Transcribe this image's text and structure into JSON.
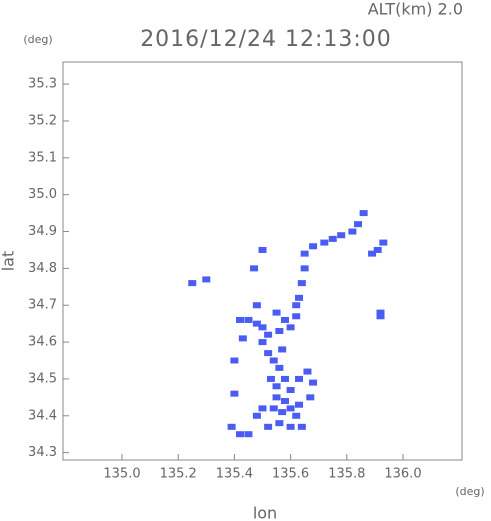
{
  "chart_data": {
    "type": "scatter",
    "title": "2016/12/24 12:13:00",
    "subtitle": "ALT(km)  2.0",
    "x_label": "lon",
    "y_label": "lat",
    "x_unit": "(deg)",
    "y_unit": "(deg)",
    "x": [
      135.86,
      135.84,
      135.82,
      135.78,
      135.75,
      135.72,
      135.68,
      135.93,
      135.91,
      135.89,
      135.92,
      135.92,
      135.65,
      135.65,
      135.64,
      135.63,
      135.62,
      135.62,
      135.25,
      135.3,
      135.5,
      135.47,
      135.42,
      135.45,
      135.48,
      135.5,
      135.52,
      135.56,
      135.6,
      135.58,
      135.5,
      135.52,
      135.54,
      135.56,
      135.53,
      135.55,
      135.58,
      135.6,
      135.63,
      135.66,
      135.68,
      135.67,
      135.63,
      135.6,
      135.57,
      135.54,
      135.5,
      135.48,
      135.56,
      135.6,
      135.64,
      135.52,
      135.45,
      135.42,
      135.39,
      135.4,
      135.4,
      135.43,
      135.48,
      135.55,
      135.57,
      135.58,
      135.62,
      135.55
    ],
    "y": [
      34.95,
      34.92,
      34.9,
      34.89,
      34.88,
      34.87,
      34.86,
      34.87,
      34.85,
      34.84,
      34.68,
      34.67,
      34.84,
      34.8,
      34.76,
      34.72,
      34.7,
      34.67,
      34.76,
      34.77,
      34.85,
      34.8,
      34.66,
      34.66,
      34.65,
      34.64,
      34.62,
      34.63,
      34.64,
      34.66,
      34.6,
      34.57,
      34.55,
      34.53,
      34.5,
      34.48,
      34.5,
      34.47,
      34.5,
      34.52,
      34.49,
      34.45,
      34.43,
      34.42,
      34.41,
      34.42,
      34.42,
      34.4,
      34.38,
      34.37,
      34.37,
      34.37,
      34.35,
      34.35,
      34.37,
      34.46,
      34.55,
      34.61,
      34.7,
      34.68,
      34.58,
      34.44,
      34.4,
      34.45
    ],
    "color": "#4b5cf2",
    "xlim": [
      134.79,
      136.21
    ],
    "ylim": [
      34.28,
      35.36
    ],
    "xticks": [
      {
        "value": 135,
        "label": "135.0"
      },
      135.2,
      135.4,
      135.6,
      135.8,
      {
        "value": 136,
        "label": "136.0"
      }
    ],
    "yticks": [
      34.3,
      34.4,
      34.5,
      34.6,
      34.7,
      34.8,
      34.9,
      {
        "value": 35,
        "label": "35.0"
      },
      35.1,
      35.2,
      35.3
    ]
  }
}
